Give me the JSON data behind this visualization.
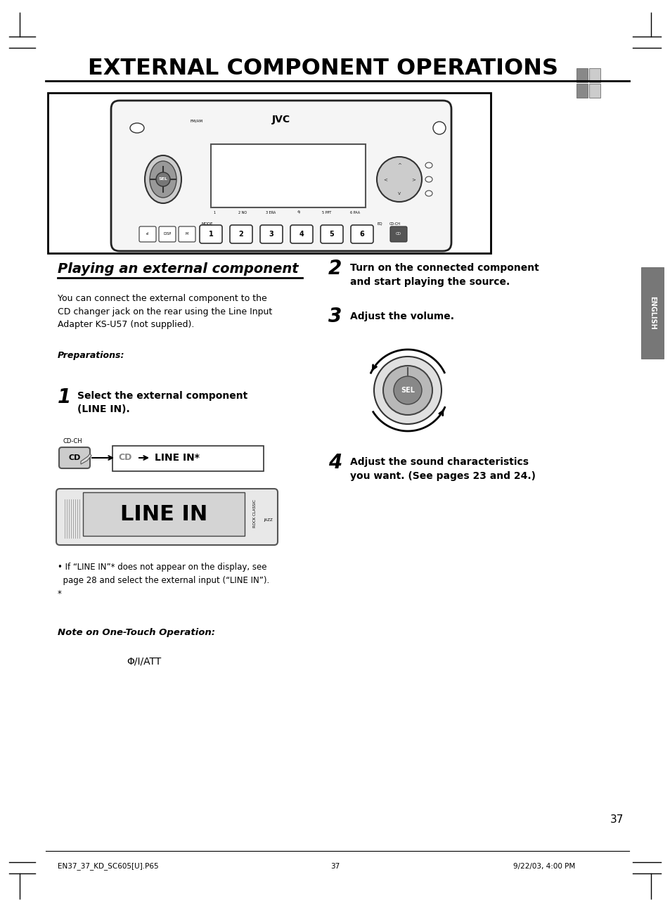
{
  "title": "EXTERNAL COMPONENT OPERATIONS",
  "bg_color": "#ffffff",
  "text_color": "#000000",
  "section_title": "Playing an external component",
  "body_text_1": "You can connect the external component to the\nCD changer jack on the rear using the Line Input\nAdapter KS-U57 (not supplied).",
  "preparations_label": "Preparations:",
  "step1_title": "Select the external component\n(LINE IN).",
  "step1_note": "• If “LINE IN”* does not appear on the display, see\n  page 28 and select the external input (“LINE IN”).\n*",
  "step2_title": "Turn on the connected component\nand start playing the source.",
  "step3_title": "Adjust the volume.",
  "step4_title": "Adjust the sound characteristics\nyou want. (See pages 23 and 24.)",
  "note_label": "Note on One-Touch Operation:",
  "note_symbol": "Φ/I/ATT",
  "footer_left": "EN37_37_KD_SC605[U].P65",
  "footer_center": "37",
  "footer_right": "9/22/03, 4:00 PM",
  "page_number": "37",
  "cd_label": "CD",
  "line_in_label_cd": "CD",
  "line_in_label_arrow": "→",
  "line_in_label_text": "LINE IN*",
  "cd_ch_label": "CD-CH",
  "english_label": "ENGLISH",
  "stereo_bg": "#f8f8f8",
  "stereo_border": "#222222",
  "display_bg": "#ffffff",
  "knob_outer": "#cccccc",
  "knob_inner": "#888888",
  "button_bg": "#ffffff"
}
